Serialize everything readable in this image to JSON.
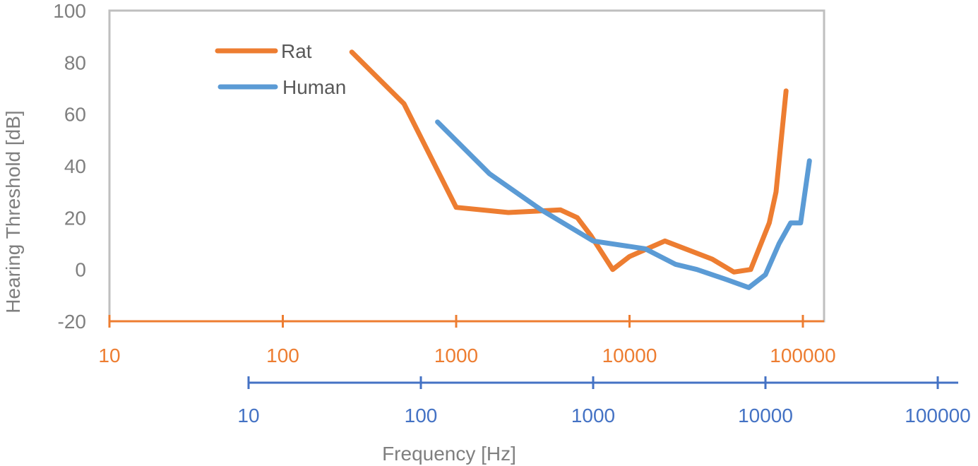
{
  "chart_data": {
    "type": "line",
    "title": "",
    "ylabel": "Hearing Threshold [dB]",
    "xlabel": "Frequency [Hz]",
    "ylim": [
      -20,
      100
    ],
    "y_ticks": [
      "-20",
      "0",
      "20",
      "40",
      "60",
      "80",
      "100"
    ],
    "x_scale": "log",
    "x_axes": [
      {
        "series": "Rat",
        "ticks": [
          "10",
          "100",
          "1000",
          "10000",
          "100000"
        ],
        "color": "#ed7d31"
      },
      {
        "series": "Human",
        "ticks": [
          "10",
          "100",
          "1000",
          "10000",
          "100000"
        ],
        "color": "#4472c4"
      }
    ],
    "legend_position": "top-left",
    "series": [
      {
        "name": "Rat",
        "color": "#ed7d31",
        "x": [
          250,
          500,
          1000,
          2000,
          4000,
          5000,
          6000,
          8000,
          10000,
          16000,
          30000,
          40000,
          50000,
          64000,
          70000,
          80000
        ],
        "y": [
          84,
          64,
          24,
          22,
          23,
          20,
          13,
          0,
          5,
          11,
          4,
          -1,
          0,
          18,
          30,
          69
        ]
      },
      {
        "name": "Human",
        "color": "#5b9bd5",
        "x": [
          125,
          250,
          500,
          1000,
          2000,
          3000,
          4000,
          6000,
          8000,
          10000,
          12000,
          14000,
          16000,
          18000
        ],
        "y": [
          57,
          37,
          23,
          11,
          8,
          2,
          0,
          -4,
          -7,
          -2,
          10,
          18,
          18,
          42
        ]
      }
    ]
  }
}
